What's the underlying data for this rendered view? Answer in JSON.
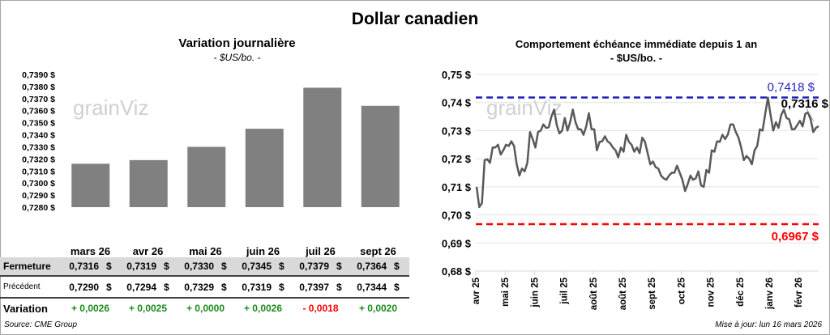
{
  "title": "Dollar canadien",
  "watermark": "grainViz",
  "source": "Source: CME Group",
  "updated": "Mise à jour: lun 16 mars 2026",
  "chart_data": [
    {
      "type": "bar",
      "title": "Variation journalière",
      "subtitle": "- $US/bo. -",
      "categories": [
        "mars 26",
        "avr 26",
        "mai 26",
        "juin 26",
        "juil 26",
        "sept 26"
      ],
      "values": [
        0.7316,
        0.7319,
        0.733,
        0.7345,
        0.7379,
        0.7364
      ],
      "ylim": [
        0.728,
        0.739
      ],
      "yticks": [
        "0,7280 $",
        "0,7290 $",
        "0,7300 $",
        "0,7310 $",
        "0,7320 $",
        "0,7330 $",
        "0,7340 $",
        "0,7350 $",
        "0,7360 $",
        "0,7370 $",
        "0,7380 $",
        "0,7390 $"
      ],
      "bar_color": "#808080",
      "grid": false
    },
    {
      "type": "line",
      "title": "Comportement échéance immédiate depuis 1 an",
      "subtitle": "- $US/bo. -",
      "ylim": [
        0.68,
        0.75
      ],
      "yticks": [
        "0,68 $",
        "0,69 $",
        "0,70 $",
        "0,71 $",
        "0,72 $",
        "0,73 $",
        "0,74 $",
        "0,75 $"
      ],
      "x_labels": [
        "avr 25",
        "mai 25",
        "juin 25",
        "juil 25",
        "août 25",
        "août 25",
        "sept 25",
        "oct 25",
        "nov 25",
        "déc 25",
        "janv 26",
        "févr 26"
      ],
      "grid": true,
      "line_color": "#595959",
      "values": [
        0.71,
        0.7028,
        0.7042,
        0.7195,
        0.7198,
        0.7185,
        0.724,
        0.724,
        0.725,
        0.7215,
        0.723,
        0.725,
        0.7245,
        0.7262,
        0.7245,
        0.718,
        0.714,
        0.7165,
        0.7155,
        0.7185,
        0.7295,
        0.727,
        0.724,
        0.7295,
        0.73,
        0.7322,
        0.731,
        0.7312,
        0.735,
        0.7375,
        0.732,
        0.729,
        0.73,
        0.7345,
        0.73,
        0.733,
        0.7375,
        0.733,
        0.7305,
        0.7305,
        0.7285,
        0.7315,
        0.7362,
        0.7305,
        0.7305,
        0.723,
        0.726,
        0.7262,
        0.728,
        0.7262,
        0.7255,
        0.724,
        0.723,
        0.7205,
        0.724,
        0.7225,
        0.7285,
        0.726,
        0.725,
        0.7225,
        0.724,
        0.722,
        0.7275,
        0.726,
        0.722,
        0.718,
        0.719,
        0.717,
        0.7165,
        0.714,
        0.713,
        0.7125,
        0.714,
        0.715,
        0.715,
        0.7175,
        0.715,
        0.7125,
        0.7085,
        0.711,
        0.714,
        0.7125,
        0.713,
        0.7155,
        0.7105,
        0.71,
        0.716,
        0.715,
        0.723,
        0.7225,
        0.7262,
        0.726,
        0.7285,
        0.727,
        0.7285,
        0.7322,
        0.7322,
        0.7295,
        0.7275,
        0.724,
        0.7195,
        0.721,
        0.72,
        0.718,
        0.723,
        0.7245,
        0.7305,
        0.73,
        0.736,
        0.7418,
        0.7355,
        0.73,
        0.733,
        0.731,
        0.7355,
        0.7375,
        0.7345,
        0.734,
        0.7305,
        0.7305,
        0.732,
        0.7335,
        0.7315,
        0.736,
        0.7365,
        0.734,
        0.7295,
        0.731,
        0.7316
      ],
      "reference_lines": [
        {
          "label": "0,7418 $",
          "value": 0.7418,
          "color": "#1f1fbf"
        },
        {
          "label": "0,6967 $",
          "value": 0.6967,
          "color": "#ff0000"
        }
      ],
      "last_label": "0,7316 $"
    }
  ],
  "table": {
    "headers": [
      "mars 26",
      "avr 26",
      "mai 26",
      "juin 26",
      "juil 26",
      "sept 26"
    ],
    "currency": "$",
    "rows": [
      {
        "label": "Fermeture",
        "values": [
          "0,7316",
          "0,7319",
          "0,7330",
          "0,7345",
          "0,7379",
          "0,7364"
        ]
      },
      {
        "label": "Précédent",
        "values": [
          "0,7290",
          "0,7294",
          "0,7329",
          "0,7319",
          "0,7397",
          "0,7344"
        ]
      }
    ],
    "variation": {
      "label": "Variation",
      "values": [
        "+ 0,0026",
        "+ 0,0025",
        "+ 0,0000",
        "+ 0,0026",
        "- 0,0018",
        "+ 0,0020"
      ],
      "positive_color": "#1a8a1a",
      "negative_color": "#ff0000"
    }
  }
}
